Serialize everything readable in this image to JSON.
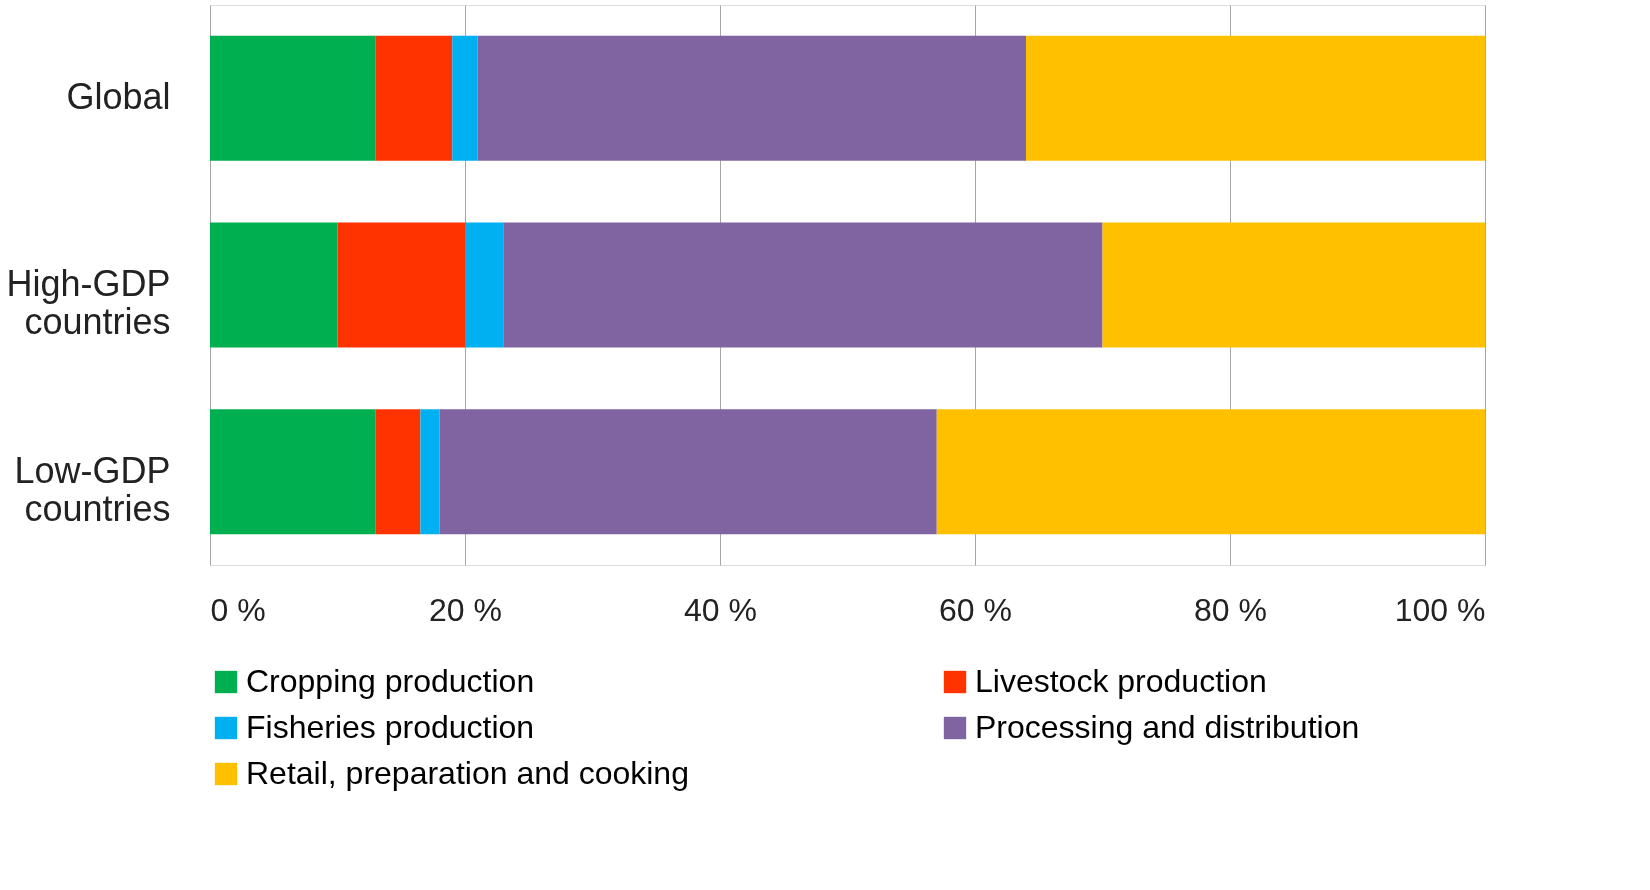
{
  "chart_data": {
    "type": "bar",
    "orientation": "horizontal",
    "stacked": true,
    "categories": [
      "Global",
      "High-GDP countries",
      "Low-GDP countries"
    ],
    "series": [
      {
        "name": "Cropping production",
        "color": "#00b050",
        "values": [
          13,
          10,
          13
        ]
      },
      {
        "name": "Livestock production",
        "color": "#ff3300",
        "values": [
          6,
          10,
          3.5
        ]
      },
      {
        "name": "Fisheries production",
        "color": "#00b0f0",
        "values": [
          2,
          3,
          1.5
        ]
      },
      {
        "name": "Processing and distribution",
        "color": "#8064a2",
        "values": [
          43,
          47,
          39
        ]
      },
      {
        "name": "Retail, preparation and cooking",
        "color": "#ffc000",
        "values": [
          36,
          30,
          43
        ]
      }
    ],
    "xlim": [
      0,
      100
    ],
    "xticks": [
      {
        "value": 0,
        "label": "0 %"
      },
      {
        "value": 20,
        "label": "20 %"
      },
      {
        "value": 40,
        "label": "40 %"
      },
      {
        "value": 60,
        "label": "60 %"
      },
      {
        "value": 80,
        "label": "80 %"
      },
      {
        "value": 100,
        "label": "100 %"
      }
    ],
    "grid": "x",
    "legend": "bottom"
  }
}
